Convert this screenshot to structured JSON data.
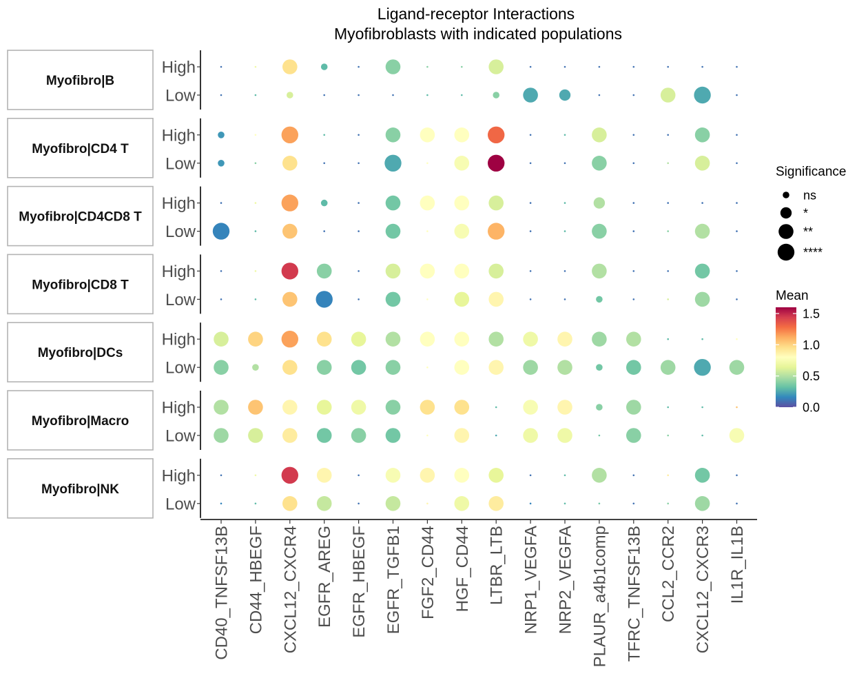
{
  "chart_data": {
    "type": "scatter",
    "title": "Ligand-receptor Interactions",
    "subtitle": "Myofibroblasts with indicated populations",
    "interactions": [
      "CD40_TNFSF13B",
      "CD44_HBEGF",
      "CXCL12_CXCR4",
      "EGFR_AREG",
      "EGFR_HBEGF",
      "EGFR_TGFB1",
      "FGF2_CD44",
      "HGF_CD44",
      "LTBR_LTB",
      "NRP1_VEGFA",
      "NRP2_VEGFA",
      "PLAUR_a4b1comp",
      "TFRC_TNFSF13B",
      "CCL2_CCR2",
      "CXCL12_CXCR3",
      "IL1R_IL1B"
    ],
    "levels": [
      "High",
      "Low"
    ],
    "panels": [
      {
        "label": "Myofibro|B",
        "rows": [
          {
            "level": "High",
            "mean": [
              0.1,
              0.7,
              0.95,
              0.3,
              0.1,
              0.4,
              0.4,
              0.4,
              0.6,
              0.1,
              0.1,
              0.1,
              0.1,
              0.1,
              0.1,
              0.1
            ],
            "sig": [
              0,
              0,
              3,
              1,
              0,
              3,
              0,
              0,
              3,
              0,
              0,
              0,
              0,
              0,
              0,
              0
            ]
          },
          {
            "level": "Low",
            "mean": [
              0.1,
              0.3,
              0.6,
              0.1,
              0.1,
              0.1,
              0.3,
              0.3,
              0.4,
              0.25,
              0.25,
              0.1,
              0.1,
              0.6,
              0.25,
              0.1
            ],
            "sig": [
              0,
              0,
              1,
              0,
              0,
              0,
              0,
              0,
              1,
              3,
              2,
              0,
              0,
              3,
              4,
              0
            ]
          }
        ]
      },
      {
        "label": "Myofibro|CD4 T",
        "rows": [
          {
            "level": "High",
            "mean": [
              0.2,
              0.8,
              1.15,
              0.3,
              0.1,
              0.4,
              0.8,
              0.8,
              1.3,
              0.1,
              0.3,
              0.6,
              0.1,
              0.1,
              0.4,
              0.1
            ],
            "sig": [
              1,
              0,
              4,
              0,
              0,
              3,
              3,
              3,
              4,
              0,
              0,
              3,
              0,
              0,
              3,
              0
            ]
          },
          {
            "level": "Low",
            "mean": [
              0.2,
              0.4,
              0.95,
              0.1,
              0.1,
              0.25,
              0.8,
              0.75,
              1.6,
              0.1,
              0.1,
              0.4,
              0.1,
              0.5,
              0.6,
              0.1
            ],
            "sig": [
              1,
              0,
              3,
              0,
              0,
              4,
              0,
              3,
              4,
              0,
              0,
              3,
              0,
              0,
              3,
              0
            ]
          }
        ]
      },
      {
        "label": "Myofibro|CD4CD8 T",
        "rows": [
          {
            "level": "High",
            "mean": [
              0.1,
              0.7,
              1.15,
              0.3,
              0.1,
              0.35,
              0.8,
              0.8,
              0.6,
              0.1,
              0.3,
              0.5,
              0.1,
              0.1,
              0.1,
              0.1
            ],
            "sig": [
              0,
              0,
              4,
              1,
              0,
              3,
              3,
              3,
              3,
              0,
              0,
              2,
              0,
              0,
              0,
              0
            ],
            "skip": [
              false,
              false,
              false,
              false,
              false,
              false,
              false,
              false,
              false,
              false,
              false,
              false,
              false,
              false,
              false,
              false
            ]
          },
          {
            "level": "Low",
            "mean": [
              0.15,
              0.3,
              1.05,
              0.1,
              0.1,
              0.35,
              0.8,
              0.75,
              1.1,
              0.1,
              0.3,
              0.4,
              0.1,
              0.4,
              0.5,
              0.1
            ],
            "sig": [
              4,
              0,
              3,
              0,
              0,
              3,
              0,
              3,
              4,
              0,
              0,
              3,
              0,
              0,
              3,
              0
            ]
          }
        ]
      },
      {
        "label": "Myofibro|CD8 T",
        "rows": [
          {
            "level": "High",
            "mean": [
              0.1,
              0.7,
              1.45,
              0.4,
              0.1,
              0.6,
              0.8,
              0.8,
              0.6,
              0.1,
              0.1,
              0.5,
              0.1,
              0.1,
              0.35,
              0.1
            ],
            "sig": [
              0,
              0,
              4,
              3,
              0,
              3,
              3,
              3,
              3,
              0,
              0,
              3,
              0,
              0,
              3,
              0
            ]
          },
          {
            "level": "Low",
            "mean": [
              0.1,
              0.3,
              1.05,
              0.15,
              0.1,
              0.35,
              0.8,
              0.65,
              0.85,
              0.1,
              0.1,
              0.35,
              0.1,
              0.6,
              0.45,
              0.1
            ],
            "sig": [
              0,
              0,
              3,
              4,
              0,
              3,
              0,
              3,
              3,
              0,
              0,
              1,
              0,
              0,
              3,
              0
            ]
          }
        ]
      },
      {
        "label": "Myofibro|DCs",
        "rows": [
          {
            "level": "High",
            "mean": [
              0.6,
              1.0,
              1.15,
              0.95,
              0.65,
              0.5,
              0.8,
              0.8,
              0.5,
              0.7,
              0.85,
              0.45,
              0.5,
              0.3,
              0.3,
              0.8
            ],
            "sig": [
              3,
              3,
              4,
              3,
              3,
              3,
              3,
              3,
              3,
              3,
              3,
              3,
              3,
              0,
              0,
              0
            ]
          },
          {
            "level": "Low",
            "mean": [
              0.4,
              0.5,
              0.95,
              0.4,
              0.35,
              0.4,
              0.8,
              0.8,
              0.85,
              0.45,
              0.5,
              0.35,
              0.35,
              0.45,
              0.25,
              0.45
            ],
            "sig": [
              3,
              1,
              3,
              3,
              3,
              3,
              0,
              3,
              3,
              3,
              3,
              1,
              3,
              3,
              4,
              3
            ]
          }
        ]
      },
      {
        "label": "Myofibro|Macro",
        "rows": [
          {
            "level": "High",
            "mean": [
              0.5,
              1.05,
              0.85,
              0.65,
              0.7,
              0.4,
              0.95,
              0.95,
              0.3,
              0.75,
              0.85,
              0.4,
              0.45,
              0.3,
              0.3,
              1.05
            ],
            "sig": [
              3,
              3,
              3,
              3,
              3,
              3,
              3,
              3,
              0,
              3,
              3,
              1,
              3,
              0,
              0,
              0
            ]
          },
          {
            "level": "Low",
            "mean": [
              0.45,
              0.6,
              0.9,
              0.35,
              0.4,
              0.35,
              0.8,
              0.85,
              0.25,
              0.7,
              0.7,
              0.35,
              0.4,
              0.4,
              0.3,
              0.75
            ],
            "sig": [
              3,
              3,
              3,
              3,
              3,
              3,
              0,
              3,
              0,
              3,
              3,
              0,
              3,
              0,
              0,
              3
            ]
          }
        ]
      },
      {
        "label": "Myofibro|NK",
        "rows": [
          {
            "level": "High",
            "mean": [
              0.1,
              0.7,
              1.45,
              0.85,
              0.1,
              0.75,
              0.85,
              0.8,
              0.65,
              0.1,
              0.3,
              0.5,
              0.1,
              0.9,
              0.35,
              0.1
            ],
            "sig": [
              0,
              0,
              4,
              3,
              0,
              3,
              3,
              3,
              3,
              0,
              0,
              3,
              0,
              0,
              3,
              0
            ]
          },
          {
            "level": "Low",
            "mean": [
              0.15,
              0.3,
              0.95,
              0.55,
              0.1,
              0.55,
              0.85,
              0.7,
              0.9,
              0.15,
              0.3,
              0.35,
              0.1,
              0.4,
              0.45,
              0.1
            ],
            "sig": [
              0,
              0,
              3,
              3,
              0,
              3,
              0,
              3,
              3,
              0,
              0,
              0,
              0,
              0,
              3,
              0
            ]
          }
        ]
      }
    ],
    "size_legend": {
      "title": "Significance",
      "levels": [
        "ns",
        "*",
        "**",
        "****"
      ]
    },
    "color_legend": {
      "title": "Mean",
      "ticks": [
        1.5,
        1.0,
        0.5,
        0.0
      ],
      "tick_labels": [
        "1.5",
        "1.0",
        "0.5",
        "0.0"
      ],
      "range": [
        0,
        1.6
      ]
    },
    "palette": [
      "#5e4fa2",
      "#3288bd",
      "#66c2a5",
      "#abdda4",
      "#e6f598",
      "#ffffbf",
      "#fee08b",
      "#fdae61",
      "#f46d43",
      "#d53e4f",
      "#9e0142"
    ]
  }
}
